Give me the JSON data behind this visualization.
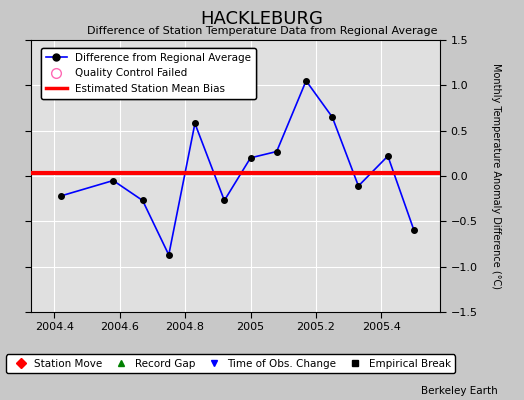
{
  "title": "HACKLEBURG",
  "subtitle": "Difference of Station Temperature Data from Regional Average",
  "ylabel": "Monthly Temperature Anomaly Difference (°C)",
  "watermark": "Berkeley Earth",
  "xlim": [
    2004.33,
    2005.58
  ],
  "ylim": [
    -1.5,
    1.5
  ],
  "xticks": [
    2004.4,
    2004.6,
    2004.8,
    2005.0,
    2005.2,
    2005.4
  ],
  "yticks": [
    -1.5,
    -1.0,
    -0.5,
    0.0,
    0.5,
    1.0,
    1.5
  ],
  "bias": 0.03,
  "line_x": [
    2004.42,
    2004.58,
    2004.67,
    2004.75,
    2004.83,
    2004.92,
    2005.0,
    2005.08,
    2005.17,
    2005.25,
    2005.33,
    2005.42,
    2005.5
  ],
  "line_y": [
    -0.22,
    -0.05,
    -0.27,
    -0.87,
    0.58,
    -0.27,
    0.2,
    0.27,
    1.05,
    0.65,
    -0.11,
    0.22,
    -0.6
  ],
  "line_color": "#0000ff",
  "marker_color": "#000000",
  "bias_color": "#ff0000",
  "fig_bg_color": "#c8c8c8",
  "plot_bg_color": "#e0e0e0",
  "grid_color": "#ffffff",
  "title_fontsize": 13,
  "subtitle_fontsize": 8,
  "legend1_items": [
    {
      "label": "Difference from Regional Average",
      "color": "#0000ff",
      "type": "line_dot"
    },
    {
      "label": "Quality Control Failed",
      "color": "#ff69b4",
      "type": "open_circle"
    },
    {
      "label": "Estimated Station Mean Bias",
      "color": "#ff0000",
      "type": "line"
    }
  ],
  "legend2_items": [
    {
      "label": "Station Move",
      "color": "#ff0000",
      "type": "diamond"
    },
    {
      "label": "Record Gap",
      "color": "#008000",
      "type": "triangle_up"
    },
    {
      "label": "Time of Obs. Change",
      "color": "#0000ff",
      "type": "triangle_down"
    },
    {
      "label": "Empirical Break",
      "color": "#000000",
      "type": "square"
    }
  ]
}
